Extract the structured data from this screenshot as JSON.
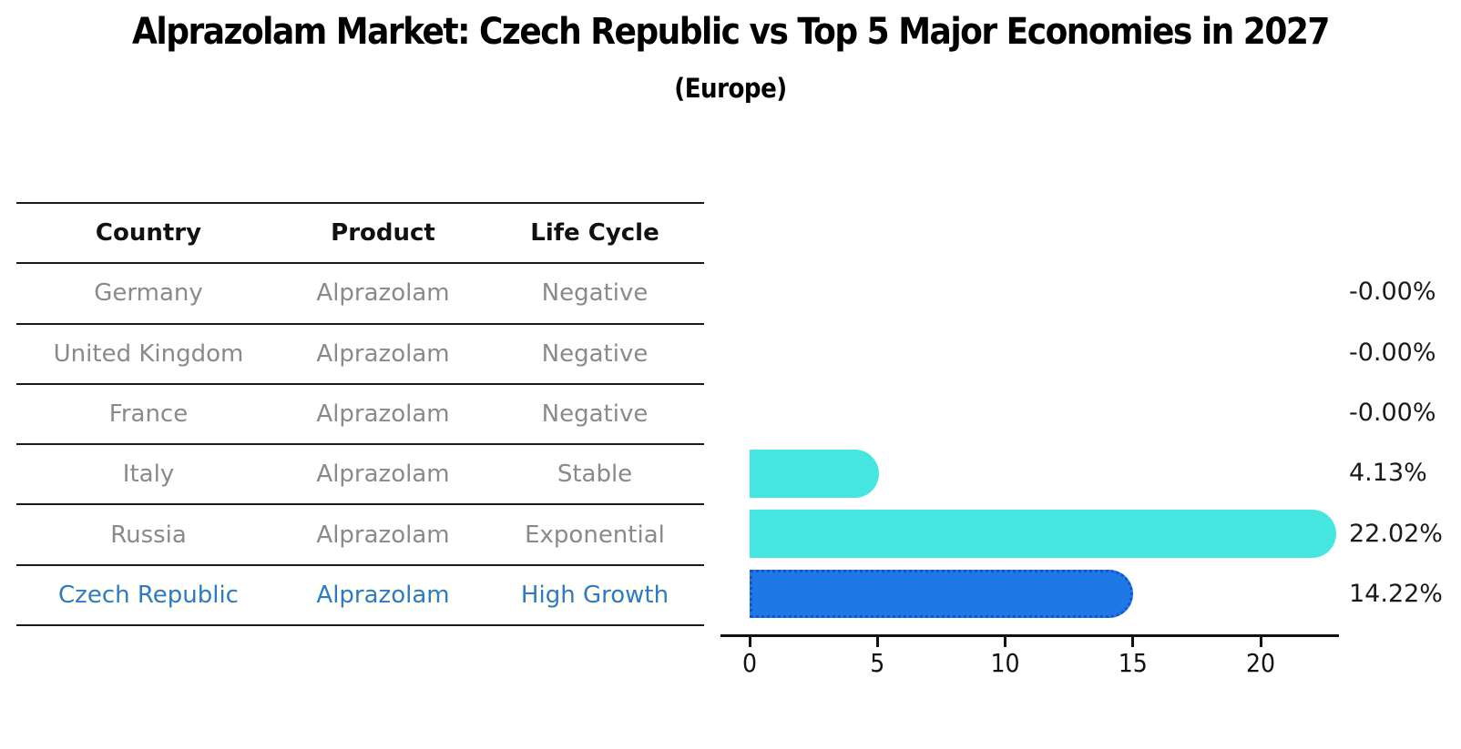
{
  "title": "Alprazolam Market: Czech Republic vs Top 5 Major Economies in 2027",
  "subtitle": "(Europe)",
  "table": {
    "headers": {
      "country": "Country",
      "product": "Product",
      "life_cycle": "Life Cycle"
    },
    "rows": [
      {
        "country": "Germany",
        "product": "Alprazolam",
        "life_cycle": "Negative"
      },
      {
        "country": "United Kingdom",
        "product": "Alprazolam",
        "life_cycle": "Negative"
      },
      {
        "country": "France",
        "product": "Alprazolam",
        "life_cycle": "Negative"
      },
      {
        "country": "Italy",
        "product": "Alprazolam",
        "life_cycle": "Stable"
      },
      {
        "country": "Russia",
        "product": "Alprazolam",
        "life_cycle": "Exponential"
      },
      {
        "country": "Czech Republic",
        "product": "Alprazolam",
        "life_cycle": "High Growth"
      }
    ]
  },
  "chart_data": {
    "type": "bar",
    "orientation": "horizontal",
    "title": "Alprazolam Market: Czech Republic vs Top 5 Major Economies in 2027",
    "subtitle": "(Europe)",
    "categories": [
      "Germany",
      "United Kingdom",
      "France",
      "Italy",
      "Russia",
      "Czech Republic"
    ],
    "values": [
      -0.0,
      -0.0,
      -0.0,
      4.13,
      22.02,
      14.22
    ],
    "value_labels": [
      "-0.00%",
      "-0.00%",
      "-0.00%",
      "4.13%",
      "22.02%",
      "14.22%"
    ],
    "x_tick_labels": [
      "0",
      "5",
      "10",
      "15",
      "20"
    ],
    "x_tick_values": [
      0,
      5,
      10,
      15,
      20
    ],
    "xlim": [
      0,
      23
    ],
    "grid": false,
    "legend": "none",
    "highlight_index": 5,
    "bar_color": "#45E6E0",
    "highlight_bar_color": "#1E78E6",
    "highlight_border_color": "#1553CD"
  },
  "colors": {
    "row_text": "#8a8a8a",
    "highlight_text": "#2D7BC8",
    "header_text": "#111111",
    "table_line": "#1a1a1a",
    "axis": "#111111",
    "value_label": "#1a1a1a"
  }
}
